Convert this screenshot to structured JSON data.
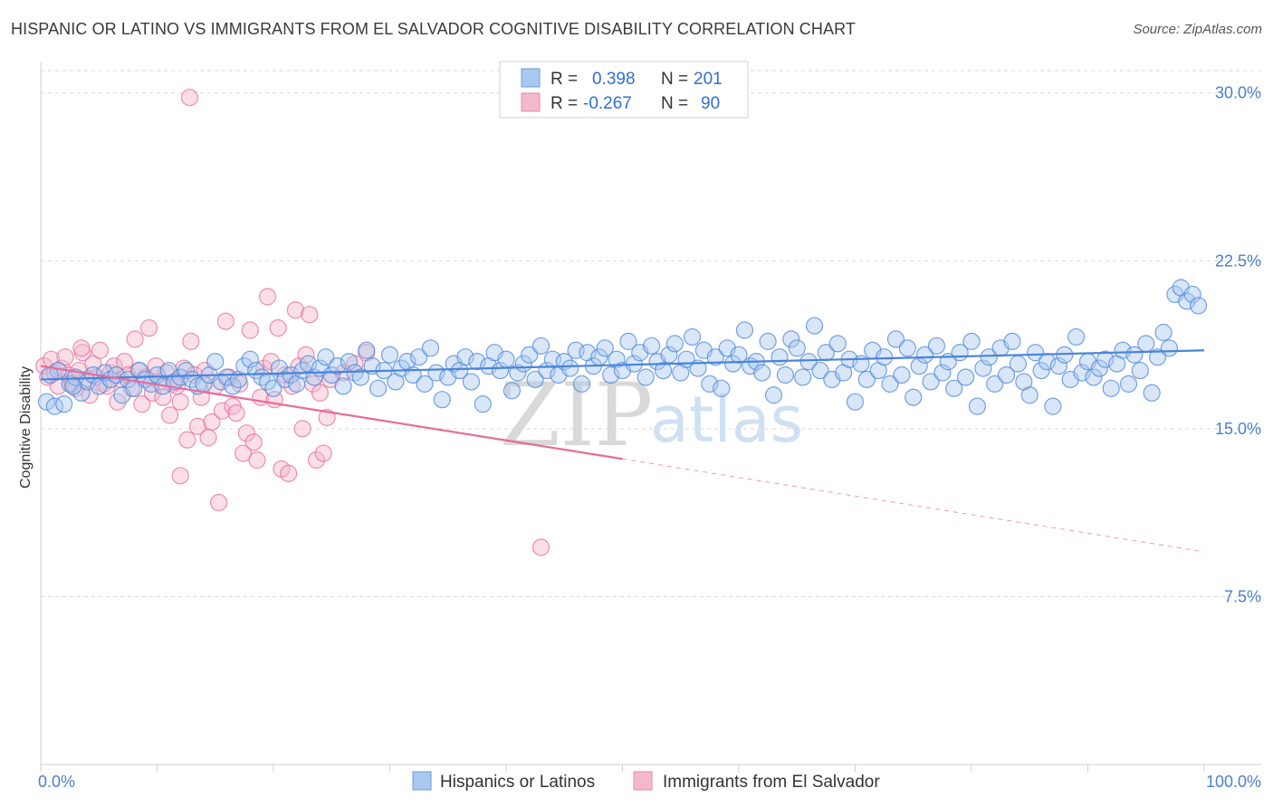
{
  "header": {
    "title": "HISPANIC OR LATINO VS IMMIGRANTS FROM EL SALVADOR COGNITIVE DISABILITY CORRELATION CHART",
    "source": "Source: ZipAtlas.com"
  },
  "watermark": {
    "zip": "ZIP",
    "atlas": "atlas"
  },
  "colors": {
    "blue": "#4a84d8",
    "blue_fill": "#a9c8f0",
    "pink": "#e76b99",
    "pink_fill": "#f4b8cd",
    "tick": "#4a7fd0",
    "grid": "#d8d8d8"
  },
  "legend_top": {
    "rows": [
      {
        "r_label": "R =",
        "r_value": "0.398",
        "n_label": "N =",
        "n_value": "201"
      },
      {
        "r_label": "R =",
        "r_value": "-0.267",
        "n_label": "N =",
        "n_value": "90"
      }
    ]
  },
  "legend_bottom": {
    "items": [
      "Hispanics or Latinos",
      "Immigrants from El Salvador"
    ]
  },
  "chart_data": {
    "type": "scatter",
    "title": "HISPANIC OR LATINO VS IMMIGRANTS FROM EL SALVADOR COGNITIVE DISABILITY CORRELATION CHART",
    "ylabel": "Cognitive Disability",
    "xlabel": "",
    "xlim": [
      0,
      100
    ],
    "ylim": [
      0,
      31
    ],
    "x_tick_labels": [
      "0.0%",
      "100.0%"
    ],
    "y_ticks": [
      7.5,
      15.0,
      22.5,
      30.0
    ],
    "y_tick_labels": [
      "7.5%",
      "15.0%",
      "22.5%",
      "30.0%"
    ],
    "grid": "horizontal dashed",
    "legend": "top-center and bottom",
    "series": [
      {
        "name": "Hispanics or Latinos",
        "r": 0.398,
        "n": 201,
        "trend": {
          "x": [
            0,
            100
          ],
          "y": [
            17.2,
            18.5
          ],
          "dashed_after": 100
        },
        "points": [
          [
            0.5,
            16.2
          ],
          [
            1.2,
            16.0
          ],
          [
            1.5,
            17.6
          ],
          [
            2.0,
            16.1
          ],
          [
            2.5,
            17.0
          ],
          [
            3.0,
            17.3
          ],
          [
            3.5,
            16.6
          ],
          [
            4.0,
            17.1
          ],
          [
            4.5,
            17.4
          ],
          [
            5.0,
            16.9
          ],
          [
            5.5,
            17.5
          ],
          [
            6.0,
            17.2
          ],
          [
            6.5,
            17.4
          ],
          [
            7.0,
            16.5
          ],
          [
            7.5,
            17.2
          ],
          [
            8.0,
            16.8
          ],
          [
            8.5,
            17.6
          ],
          [
            9.0,
            17.2
          ],
          [
            9.5,
            17.0
          ],
          [
            10.0,
            17.4
          ],
          [
            10.5,
            16.9
          ],
          [
            11.0,
            17.6
          ],
          [
            11.5,
            17.1
          ],
          [
            12.0,
            17.3
          ],
          [
            12.5,
            17.6
          ],
          [
            13.0,
            17.2
          ],
          [
            13.5,
            16.9
          ],
          [
            14.0,
            17.0
          ],
          [
            14.5,
            17.4
          ],
          [
            15.0,
            18.0
          ],
          [
            15.5,
            17.1
          ],
          [
            16.0,
            17.3
          ],
          [
            16.5,
            16.9
          ],
          [
            17.0,
            17.2
          ],
          [
            17.5,
            17.8
          ],
          [
            18.0,
            18.1
          ],
          [
            18.5,
            17.6
          ],
          [
            19.0,
            17.3
          ],
          [
            19.5,
            17.1
          ],
          [
            20.0,
            16.8
          ],
          [
            20.5,
            17.7
          ],
          [
            21.0,
            17.2
          ],
          [
            21.5,
            17.4
          ],
          [
            22.0,
            17.0
          ],
          [
            22.5,
            17.6
          ],
          [
            23.0,
            17.9
          ],
          [
            23.5,
            17.3
          ],
          [
            24.0,
            17.7
          ],
          [
            24.5,
            18.2
          ],
          [
            25.0,
            17.4
          ],
          [
            25.5,
            17.8
          ],
          [
            26.0,
            16.9
          ],
          [
            26.5,
            18.0
          ],
          [
            27.0,
            17.5
          ],
          [
            27.5,
            17.3
          ],
          [
            28.0,
            18.5
          ],
          [
            28.5,
            17.8
          ],
          [
            29.0,
            16.8
          ],
          [
            29.5,
            17.6
          ],
          [
            30.0,
            18.3
          ],
          [
            30.5,
            17.1
          ],
          [
            31.0,
            17.7
          ],
          [
            31.5,
            18.0
          ],
          [
            32.0,
            17.4
          ],
          [
            32.5,
            18.2
          ],
          [
            33.0,
            17.0
          ],
          [
            33.5,
            18.6
          ],
          [
            34.0,
            17.5
          ],
          [
            34.5,
            16.3
          ],
          [
            35.0,
            17.3
          ],
          [
            35.5,
            17.9
          ],
          [
            36.0,
            17.6
          ],
          [
            36.5,
            18.2
          ],
          [
            37.0,
            17.1
          ],
          [
            37.5,
            18.0
          ],
          [
            38.0,
            16.1
          ],
          [
            38.5,
            17.8
          ],
          [
            39.0,
            18.4
          ],
          [
            39.5,
            17.6
          ],
          [
            40.0,
            18.1
          ],
          [
            40.5,
            16.7
          ],
          [
            41.0,
            17.5
          ],
          [
            41.5,
            17.9
          ],
          [
            42.0,
            18.3
          ],
          [
            42.5,
            17.2
          ],
          [
            43.0,
            18.7
          ],
          [
            43.5,
            17.6
          ],
          [
            44.0,
            18.1
          ],
          [
            44.5,
            17.4
          ],
          [
            45.0,
            18.0
          ],
          [
            45.5,
            17.7
          ],
          [
            46.0,
            18.5
          ],
          [
            46.5,
            17.0
          ],
          [
            47.0,
            18.4
          ],
          [
            47.5,
            17.8
          ],
          [
            48.0,
            18.2
          ],
          [
            48.5,
            18.6
          ],
          [
            49.0,
            17.4
          ],
          [
            49.5,
            18.1
          ],
          [
            50.0,
            17.6
          ],
          [
            50.5,
            18.9
          ],
          [
            51.0,
            17.9
          ],
          [
            51.5,
            18.4
          ],
          [
            52.0,
            17.3
          ],
          [
            52.5,
            18.7
          ],
          [
            53.0,
            18.0
          ],
          [
            53.5,
            17.6
          ],
          [
            54.0,
            18.3
          ],
          [
            54.5,
            18.8
          ],
          [
            55.0,
            17.5
          ],
          [
            55.5,
            18.1
          ],
          [
            56.0,
            19.1
          ],
          [
            56.5,
            17.7
          ],
          [
            57.0,
            18.5
          ],
          [
            57.5,
            17.0
          ],
          [
            58.0,
            18.2
          ],
          [
            58.5,
            16.8
          ],
          [
            59.0,
            18.6
          ],
          [
            59.5,
            17.9
          ],
          [
            60.0,
            18.3
          ],
          [
            60.5,
            19.4
          ],
          [
            61.0,
            17.8
          ],
          [
            61.5,
            18.0
          ],
          [
            62.0,
            17.5
          ],
          [
            62.5,
            18.9
          ],
          [
            63.0,
            16.5
          ],
          [
            63.5,
            18.2
          ],
          [
            64.0,
            17.4
          ],
          [
            64.5,
            19.0
          ],
          [
            65.0,
            18.6
          ],
          [
            65.5,
            17.3
          ],
          [
            66.0,
            18.0
          ],
          [
            66.5,
            19.6
          ],
          [
            67.0,
            17.6
          ],
          [
            67.5,
            18.4
          ],
          [
            68.0,
            17.2
          ],
          [
            68.5,
            18.8
          ],
          [
            69.0,
            17.5
          ],
          [
            69.5,
            18.1
          ],
          [
            70.0,
            16.2
          ],
          [
            70.5,
            17.9
          ],
          [
            71.0,
            17.2
          ],
          [
            71.5,
            18.5
          ],
          [
            72.0,
            17.6
          ],
          [
            72.5,
            18.2
          ],
          [
            73.0,
            17.0
          ],
          [
            73.5,
            19.0
          ],
          [
            74.0,
            17.4
          ],
          [
            74.5,
            18.6
          ],
          [
            75.0,
            16.4
          ],
          [
            75.5,
            17.8
          ],
          [
            76.0,
            18.3
          ],
          [
            76.5,
            17.1
          ],
          [
            77.0,
            18.7
          ],
          [
            77.5,
            17.5
          ],
          [
            78.0,
            18.0
          ],
          [
            78.5,
            16.8
          ],
          [
            79.0,
            18.4
          ],
          [
            79.5,
            17.3
          ],
          [
            80.0,
            18.9
          ],
          [
            80.5,
            16.0
          ],
          [
            81.0,
            17.7
          ],
          [
            81.5,
            18.2
          ],
          [
            82.0,
            17.0
          ],
          [
            82.5,
            18.6
          ],
          [
            83.0,
            17.4
          ],
          [
            83.5,
            18.9
          ],
          [
            84.0,
            17.9
          ],
          [
            84.5,
            17.1
          ],
          [
            85.0,
            16.5
          ],
          [
            85.5,
            18.4
          ],
          [
            86.0,
            17.6
          ],
          [
            86.5,
            18.0
          ],
          [
            87.0,
            16.0
          ],
          [
            87.5,
            17.8
          ],
          [
            88.0,
            18.3
          ],
          [
            88.5,
            17.2
          ],
          [
            89.0,
            19.1
          ],
          [
            89.5,
            17.5
          ],
          [
            90.0,
            18.0
          ],
          [
            90.5,
            17.3
          ],
          [
            91.0,
            17.7
          ],
          [
            91.5,
            18.1
          ],
          [
            92.0,
            16.8
          ],
          [
            92.5,
            17.9
          ],
          [
            93.0,
            18.5
          ],
          [
            93.5,
            17.0
          ],
          [
            94.0,
            18.3
          ],
          [
            94.5,
            17.6
          ],
          [
            95.0,
            18.8
          ],
          [
            95.5,
            16.6
          ],
          [
            96.0,
            18.2
          ],
          [
            96.5,
            19.3
          ],
          [
            97.0,
            18.6
          ],
          [
            97.5,
            21.0
          ],
          [
            98.0,
            21.3
          ],
          [
            98.5,
            20.7
          ],
          [
            99.0,
            21.0
          ],
          [
            99.5,
            20.5
          ],
          [
            0.8,
            17.4
          ],
          [
            2.8,
            16.9
          ]
        ]
      },
      {
        "name": "Immigrants from El Salvador",
        "r": -0.267,
        "n": 90,
        "trend": {
          "x": [
            0,
            100
          ],
          "y": [
            17.8,
            9.5
          ],
          "solid_until": 50
        },
        "points": [
          [
            0.3,
            17.8
          ],
          [
            0.6,
            17.3
          ],
          [
            0.9,
            18.1
          ],
          [
            1.2,
            17.5
          ],
          [
            1.5,
            16.9
          ],
          [
            1.8,
            17.7
          ],
          [
            2.1,
            18.2
          ],
          [
            2.4,
            17.4
          ],
          [
            2.7,
            17.0
          ],
          [
            3.0,
            16.8
          ],
          [
            3.3,
            17.6
          ],
          [
            3.6,
            18.4
          ],
          [
            3.9,
            17.2
          ],
          [
            4.2,
            16.5
          ],
          [
            4.5,
            17.9
          ],
          [
            4.8,
            17.3
          ],
          [
            5.1,
            18.5
          ],
          [
            5.4,
            17.0
          ],
          [
            5.7,
            16.9
          ],
          [
            6.0,
            17.5
          ],
          [
            6.3,
            17.8
          ],
          [
            6.6,
            16.2
          ],
          [
            6.9,
            17.2
          ],
          [
            7.2,
            18.0
          ],
          [
            7.5,
            17.4
          ],
          [
            7.8,
            16.8
          ],
          [
            8.1,
            19.0
          ],
          [
            8.4,
            17.6
          ],
          [
            8.7,
            16.1
          ],
          [
            9.0,
            17.3
          ],
          [
            9.3,
            19.5
          ],
          [
            9.6,
            16.6
          ],
          [
            9.9,
            17.8
          ],
          [
            10.2,
            17.1
          ],
          [
            10.5,
            16.4
          ],
          [
            10.8,
            17.5
          ],
          [
            11.1,
            15.6
          ],
          [
            11.4,
            17.0
          ],
          [
            11.7,
            16.9
          ],
          [
            12.0,
            16.2
          ],
          [
            12.3,
            17.7
          ],
          [
            12.6,
            14.5
          ],
          [
            12.9,
            18.9
          ],
          [
            13.2,
            17.4
          ],
          [
            13.5,
            15.1
          ],
          [
            13.8,
            16.4
          ],
          [
            14.1,
            17.6
          ],
          [
            14.4,
            14.6
          ],
          [
            14.7,
            15.3
          ],
          [
            15.0,
            16.9
          ],
          [
            15.3,
            11.7
          ],
          [
            15.6,
            15.8
          ],
          [
            15.9,
            19.8
          ],
          [
            16.2,
            17.3
          ],
          [
            16.5,
            16.0
          ],
          [
            16.8,
            15.7
          ],
          [
            17.1,
            17.0
          ],
          [
            17.4,
            13.9
          ],
          [
            17.7,
            14.8
          ],
          [
            18.0,
            19.4
          ],
          [
            18.3,
            14.4
          ],
          [
            18.6,
            13.6
          ],
          [
            18.9,
            16.4
          ],
          [
            19.2,
            17.7
          ],
          [
            19.5,
            20.9
          ],
          [
            19.8,
            18.0
          ],
          [
            20.1,
            16.3
          ],
          [
            20.4,
            19.5
          ],
          [
            20.7,
            13.2
          ],
          [
            21.0,
            17.4
          ],
          [
            21.3,
            13.0
          ],
          [
            21.6,
            16.9
          ],
          [
            21.9,
            20.3
          ],
          [
            22.2,
            17.8
          ],
          [
            22.5,
            15.0
          ],
          [
            22.8,
            18.3
          ],
          [
            23.1,
            20.1
          ],
          [
            23.4,
            17.0
          ],
          [
            23.7,
            13.6
          ],
          [
            24.0,
            16.6
          ],
          [
            24.3,
            13.9
          ],
          [
            24.6,
            15.5
          ],
          [
            24.9,
            17.2
          ],
          [
            26.0,
            17.5
          ],
          [
            27.0,
            17.9
          ],
          [
            28.0,
            18.4
          ],
          [
            12.8,
            29.8
          ],
          [
            43.0,
            9.7
          ],
          [
            12.0,
            12.9
          ],
          [
            3.5,
            18.6
          ]
        ]
      }
    ]
  }
}
